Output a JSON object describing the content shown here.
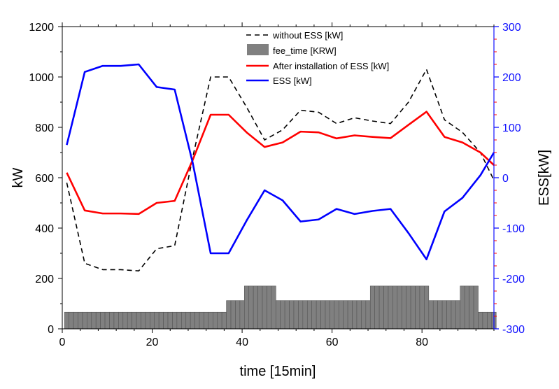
{
  "chart_data": {
    "type": "line",
    "xlabel": "time [15min]",
    "ylabel": "kW",
    "y2label": "ESS[kW]",
    "xlim": [
      0,
      96
    ],
    "ylim": [
      0,
      1200
    ],
    "y2lim": [
      -300,
      300
    ],
    "x_ticks": [
      0,
      20,
      40,
      60,
      80
    ],
    "x_tick_labels": [
      "0",
      "20",
      "40",
      "60",
      "80"
    ],
    "y_ticks": [
      0,
      200,
      400,
      600,
      800,
      1000,
      1200
    ],
    "y_tick_labels": [
      "0",
      "200",
      "400",
      "600",
      "800",
      "1000",
      "1200"
    ],
    "y2_ticks": [
      -300,
      -200,
      -100,
      0,
      100,
      200,
      300
    ],
    "y2_tick_labels": [
      "-300",
      "-200",
      "-100",
      "0",
      "100",
      "200",
      "300"
    ],
    "grid": false,
    "legend_position": "top-center",
    "colors": {
      "without_ess": "#000000",
      "fee_time": "#808080",
      "after_ess": "#ff0000",
      "ess": "#0000ff",
      "right_axis": "#1010ff",
      "right_minor_ticks": "#ff0000"
    },
    "series": [
      {
        "name": "without ESS [kW]",
        "axis": "left",
        "style": "dashed",
        "x": [
          1,
          5,
          9,
          13,
          17,
          21,
          25,
          29,
          33,
          37,
          41,
          45,
          49,
          53,
          57,
          61,
          65,
          69,
          73,
          77,
          81,
          85,
          89,
          93,
          96
        ],
        "y": [
          580,
          260,
          235,
          235,
          230,
          318,
          330,
          680,
          1000,
          1000,
          880,
          750,
          790,
          868,
          860,
          815,
          838,
          825,
          815,
          900,
          1030,
          830,
          780,
          700,
          590
        ]
      },
      {
        "name": "fee_time [KRW]",
        "axis": "left",
        "type": "bar",
        "x": [
          1,
          2,
          3,
          4,
          5,
          6,
          7,
          8,
          9,
          10,
          11,
          12,
          13,
          14,
          15,
          16,
          17,
          18,
          19,
          20,
          21,
          22,
          23,
          24,
          25,
          26,
          27,
          28,
          29,
          30,
          31,
          32,
          33,
          34,
          35,
          36,
          37,
          38,
          39,
          40,
          41,
          42,
          43,
          44,
          45,
          46,
          47,
          48,
          49,
          50,
          51,
          52,
          53,
          54,
          55,
          56,
          57,
          58,
          59,
          60,
          61,
          62,
          63,
          64,
          65,
          66,
          67,
          68,
          69,
          70,
          71,
          72,
          73,
          74,
          75,
          76,
          77,
          78,
          79,
          80,
          81,
          82,
          83,
          84,
          85,
          86,
          87,
          88,
          89,
          90,
          91,
          92,
          93,
          94,
          95,
          96
        ],
        "y": [
          66,
          66,
          66,
          66,
          66,
          66,
          66,
          66,
          66,
          66,
          66,
          66,
          66,
          66,
          66,
          66,
          66,
          66,
          66,
          66,
          66,
          66,
          66,
          66,
          66,
          66,
          66,
          66,
          66,
          66,
          66,
          66,
          66,
          66,
          66,
          66,
          112,
          112,
          112,
          112,
          170,
          170,
          170,
          170,
          170,
          170,
          170,
          112,
          112,
          112,
          112,
          112,
          112,
          112,
          112,
          112,
          112,
          112,
          112,
          112,
          112,
          112,
          112,
          112,
          112,
          112,
          112,
          112,
          170,
          170,
          170,
          170,
          170,
          170,
          170,
          170,
          170,
          170,
          170,
          170,
          170,
          112,
          112,
          112,
          112,
          112,
          112,
          112,
          170,
          170,
          170,
          170,
          66,
          66,
          66,
          66
        ]
      },
      {
        "name": "After installation of ESS [kW]",
        "axis": "left",
        "style": "solid",
        "x": [
          1,
          5,
          9,
          13,
          17,
          21,
          25,
          29,
          33,
          37,
          41,
          45,
          49,
          53,
          57,
          61,
          65,
          69,
          73,
          77,
          81,
          85,
          89,
          93,
          96
        ],
        "y": [
          620,
          470,
          458,
          458,
          456,
          500,
          508,
          670,
          850,
          850,
          780,
          722,
          740,
          783,
          780,
          756,
          768,
          762,
          757,
          810,
          862,
          762,
          740,
          700,
          650
        ]
      },
      {
        "name": "ESS [kW]",
        "axis": "right",
        "style": "solid",
        "x": [
          1,
          5,
          9,
          13,
          17,
          21,
          25,
          29,
          33,
          37,
          41,
          45,
          49,
          53,
          57,
          61,
          65,
          69,
          73,
          77,
          81,
          85,
          89,
          93,
          96
        ],
        "y": [
          65,
          210,
          222,
          222,
          225,
          180,
          175,
          30,
          -150,
          -150,
          -85,
          -25,
          -45,
          -87,
          -83,
          -62,
          -72,
          -66,
          -62,
          -110,
          -162,
          -67,
          -40,
          5,
          50
        ]
      }
    ]
  }
}
